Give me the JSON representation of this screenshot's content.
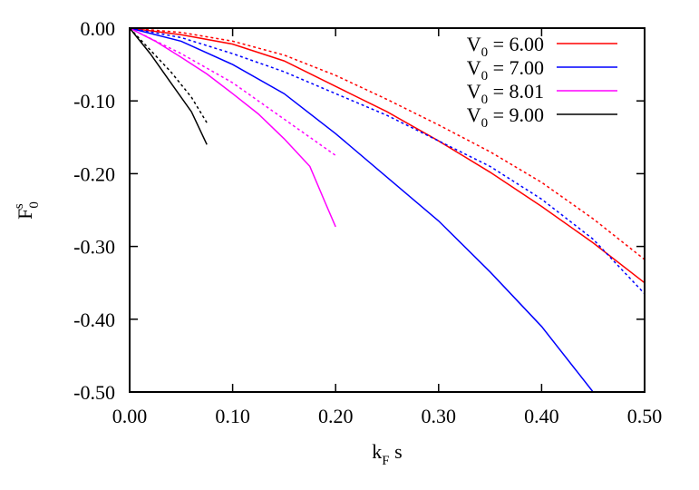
{
  "chart_data": {
    "type": "line",
    "xlabel": "k",
    "xlabel_sub": "F",
    "xlabel_suffix": " s",
    "ylabel": "F",
    "ylabel_sup": "s",
    "ylabel_sub": "0",
    "xlim": [
      0.0,
      0.5
    ],
    "ylim": [
      -0.5,
      0.0
    ],
    "xticks": [
      "0.00",
      "0.10",
      "0.20",
      "0.30",
      "0.40",
      "0.50"
    ],
    "yticks": [
      "0.00",
      "-0.10",
      "-0.20",
      "-0.30",
      "-0.40",
      "-0.50"
    ],
    "grid": false,
    "legend_position": "top-right",
    "series": [
      {
        "name": "V0 = 6.00",
        "legend_main": "V",
        "legend_sub": "0",
        "legend_rest": " = 6.00",
        "color": "#ff0000",
        "solid": [
          [
            0.0,
            0.0
          ],
          [
            0.05,
            -0.009
          ],
          [
            0.1,
            -0.022
          ],
          [
            0.15,
            -0.045
          ],
          [
            0.2,
            -0.08
          ],
          [
            0.25,
            -0.115
          ],
          [
            0.3,
            -0.155
          ],
          [
            0.35,
            -0.198
          ],
          [
            0.4,
            -0.245
          ],
          [
            0.45,
            -0.295
          ],
          [
            0.5,
            -0.35
          ]
        ],
        "dotted": [
          [
            0.0,
            0.0
          ],
          [
            0.05,
            -0.006
          ],
          [
            0.1,
            -0.018
          ],
          [
            0.15,
            -0.037
          ],
          [
            0.2,
            -0.065
          ],
          [
            0.25,
            -0.098
          ],
          [
            0.3,
            -0.133
          ],
          [
            0.35,
            -0.17
          ],
          [
            0.4,
            -0.212
          ],
          [
            0.45,
            -0.262
          ],
          [
            0.5,
            -0.318
          ]
        ]
      },
      {
        "name": "V0 = 7.00",
        "legend_main": "V",
        "legend_sub": "0",
        "legend_rest": " = 7.00",
        "color": "#0000ff",
        "solid": [
          [
            0.0,
            0.0
          ],
          [
            0.05,
            -0.018
          ],
          [
            0.1,
            -0.05
          ],
          [
            0.15,
            -0.09
          ],
          [
            0.2,
            -0.145
          ],
          [
            0.25,
            -0.205
          ],
          [
            0.3,
            -0.265
          ],
          [
            0.35,
            -0.335
          ],
          [
            0.4,
            -0.41
          ],
          [
            0.45,
            -0.5
          ]
        ],
        "dotted": [
          [
            0.0,
            0.0
          ],
          [
            0.05,
            -0.013
          ],
          [
            0.1,
            -0.035
          ],
          [
            0.15,
            -0.06
          ],
          [
            0.2,
            -0.09
          ],
          [
            0.25,
            -0.12
          ],
          [
            0.3,
            -0.155
          ],
          [
            0.35,
            -0.19
          ],
          [
            0.4,
            -0.235
          ],
          [
            0.45,
            -0.29
          ],
          [
            0.5,
            -0.365
          ]
        ]
      },
      {
        "name": "V0 = 8.01",
        "legend_main": "V",
        "legend_sub": "0",
        "legend_rest": " = 8.01",
        "color": "#ff00ff",
        "solid": [
          [
            0.0,
            0.0
          ],
          [
            0.025,
            -0.018
          ],
          [
            0.05,
            -0.04
          ],
          [
            0.075,
            -0.063
          ],
          [
            0.1,
            -0.09
          ],
          [
            0.125,
            -0.118
          ],
          [
            0.15,
            -0.152
          ],
          [
            0.175,
            -0.19
          ],
          [
            0.19,
            -0.24
          ],
          [
            0.2,
            -0.273
          ]
        ],
        "dotted": [
          [
            0.0,
            0.0
          ],
          [
            0.05,
            -0.035
          ],
          [
            0.1,
            -0.075
          ],
          [
            0.15,
            -0.125
          ],
          [
            0.2,
            -0.175
          ]
        ]
      },
      {
        "name": "V0 = 9.00",
        "legend_main": "V",
        "legend_sub": "0",
        "legend_rest": " = 9.00",
        "color": "#000000",
        "solid": [
          [
            0.0,
            0.0
          ],
          [
            0.02,
            -0.035
          ],
          [
            0.04,
            -0.075
          ],
          [
            0.06,
            -0.115
          ],
          [
            0.075,
            -0.16
          ]
        ],
        "dotted": [
          [
            0.0,
            0.0
          ],
          [
            0.02,
            -0.03
          ],
          [
            0.04,
            -0.06
          ],
          [
            0.06,
            -0.095
          ],
          [
            0.075,
            -0.13
          ]
        ]
      }
    ]
  }
}
